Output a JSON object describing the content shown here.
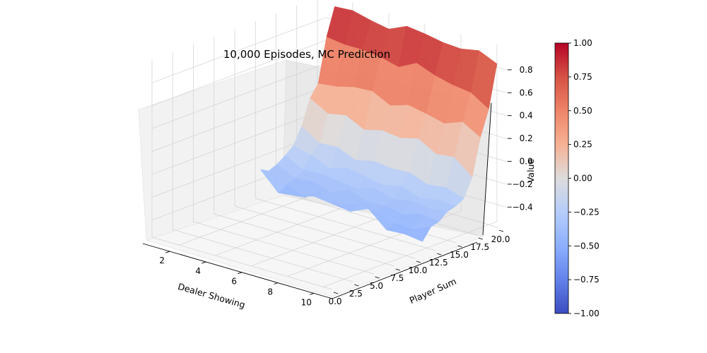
{
  "chart_data": {
    "type": "surface3d",
    "title": "10,000 Episodes, MC Prediction",
    "xlabel": "Dealer Showing",
    "ylabel": "Player Sum",
    "zlabel": "Value",
    "x_values": [
      1,
      2,
      3,
      4,
      5,
      6,
      7,
      8,
      9,
      10
    ],
    "y_values": [
      12,
      13,
      14,
      15,
      16,
      17,
      18,
      19,
      20,
      21
    ],
    "x_ticks": [
      "2",
      "4",
      "6",
      "8",
      "10"
    ],
    "y_ticks": [
      "0.0",
      "2.5",
      "5.0",
      "7.5",
      "10.0",
      "12.5",
      "15.0",
      "17.5",
      "20.0"
    ],
    "z_ticks": [
      "−0.4",
      "−0.2",
      "0.0",
      "0.2",
      "0.4",
      "0.6",
      "0.8"
    ],
    "xlim": [
      0.5,
      10.5
    ],
    "ylim": [
      0,
      21
    ],
    "zlim": [
      -0.55,
      1.0
    ],
    "z_matrix_rows_by_player_sum": [
      [
        -0.26,
        -0.42,
        -0.4,
        -0.36,
        -0.38,
        -0.4,
        -0.33,
        -0.47,
        -0.46,
        -0.48
      ],
      [
        -0.3,
        -0.38,
        -0.44,
        -0.34,
        -0.42,
        -0.36,
        -0.4,
        -0.44,
        -0.45,
        -0.38
      ],
      [
        -0.27,
        -0.35,
        -0.33,
        -0.38,
        -0.31,
        -0.37,
        -0.36,
        -0.39,
        -0.34,
        -0.36
      ],
      [
        -0.22,
        -0.3,
        -0.29,
        -0.31,
        -0.33,
        -0.28,
        -0.33,
        -0.3,
        -0.32,
        -0.3
      ],
      [
        -0.16,
        -0.2,
        -0.27,
        -0.22,
        -0.25,
        -0.28,
        -0.24,
        -0.3,
        -0.27,
        -0.28
      ],
      [
        -0.02,
        -0.12,
        -0.11,
        -0.18,
        -0.14,
        -0.16,
        -0.15,
        -0.21,
        -0.19,
        -0.24
      ],
      [
        0.2,
        0.11,
        0.14,
        0.06,
        0.1,
        0.08,
        0.12,
        0.03,
        0.05,
        -0.08
      ],
      [
        0.3,
        0.32,
        0.36,
        0.37,
        0.29,
        0.34,
        0.31,
        0.27,
        0.33,
        0.24
      ],
      [
        0.68,
        0.66,
        0.66,
        0.64,
        0.6,
        0.68,
        0.62,
        0.58,
        0.56,
        0.46
      ],
      [
        0.92,
        0.93,
        0.89,
        0.86,
        0.93,
        0.91,
        0.88,
        0.87,
        0.9,
        0.83
      ]
    ],
    "colormap": "coolwarm",
    "colorbar": {
      "ticks": [
        "1.00",
        "0.75",
        "0.50",
        "0.25",
        "0.00",
        "−0.25",
        "−0.50",
        "−0.75",
        "−1.00"
      ],
      "range": [
        -1.0,
        1.0
      ]
    },
    "grid": true
  }
}
